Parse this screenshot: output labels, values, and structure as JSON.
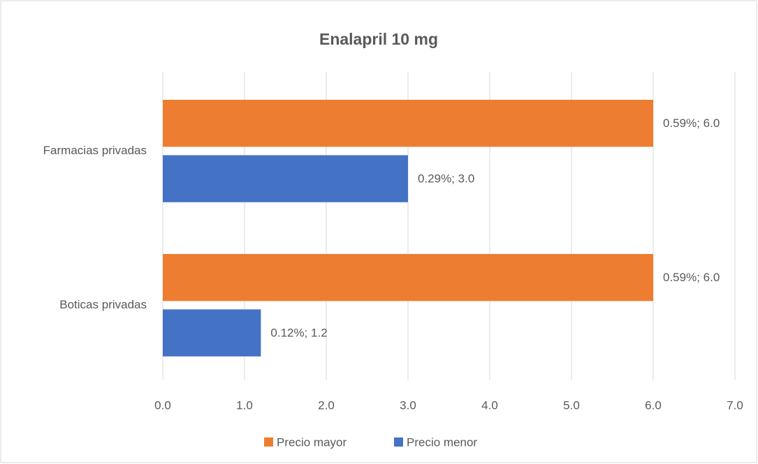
{
  "chart_data": {
    "type": "hbar",
    "title": "Enalapril 10 mg",
    "categories": [
      "Farmacias privadas",
      "Boticas privadas"
    ],
    "series": [
      {
        "name": "Precio mayor",
        "color": "#ed7d31",
        "values": [
          6.0,
          6.0
        ],
        "value_labels": [
          "0.59%; 6.0",
          "0.59%; 6.0"
        ]
      },
      {
        "name": "Precio menor",
        "color": "#4472c4",
        "values": [
          3.0,
          1.2
        ],
        "value_labels": [
          "0.29%; 3.0",
          "0.12%; 1.2"
        ]
      }
    ],
    "xlim": [
      0,
      7
    ],
    "xticks": [
      {
        "value": 0,
        "label": "0.0"
      },
      {
        "value": 1,
        "label": "1.0"
      },
      {
        "value": 2,
        "label": "2.0"
      },
      {
        "value": 3,
        "label": "3.0"
      },
      {
        "value": 4,
        "label": "4.0"
      },
      {
        "value": 5,
        "label": "5.0"
      },
      {
        "value": 6,
        "label": "6.0"
      },
      {
        "value": 7,
        "label": "7.0"
      }
    ],
    "grid": true,
    "legend": "bottom"
  }
}
